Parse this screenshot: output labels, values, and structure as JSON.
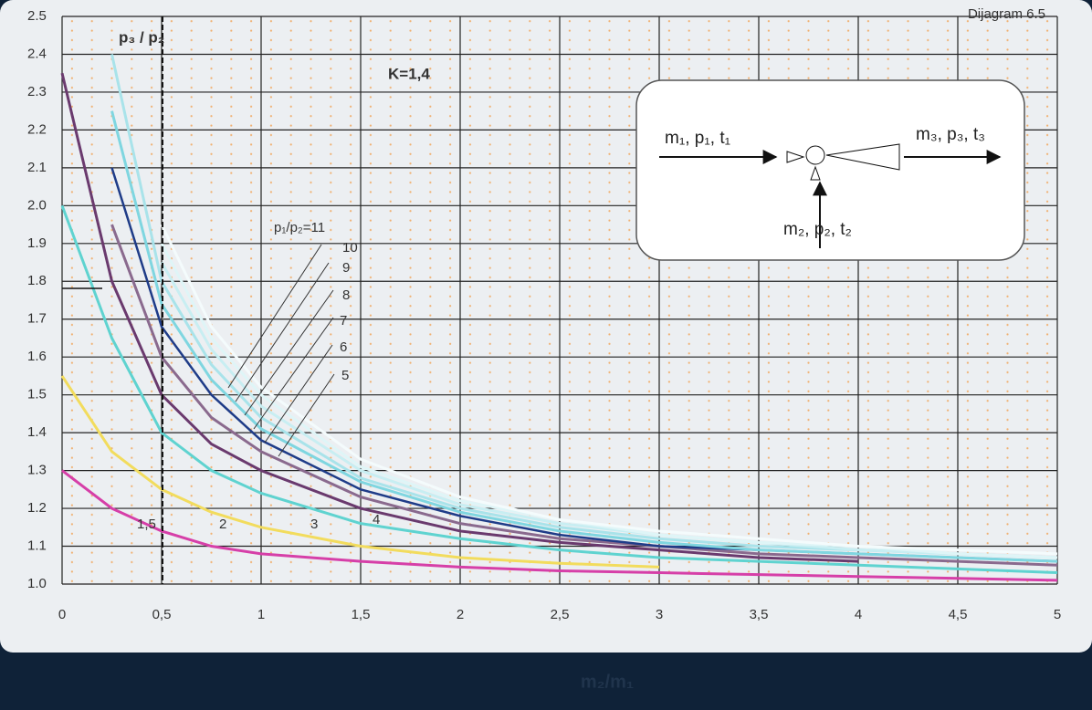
{
  "chart_data": {
    "type": "line",
    "title": "Dijagram 6.5",
    "y_label": "p₃ / p₂",
    "x_label": "m₂/m₁",
    "annotation": "K=1,4",
    "x": [
      0,
      0.25,
      0.5,
      0.75,
      1,
      1.5,
      2,
      2.5,
      3,
      3.5,
      4,
      4.5,
      5
    ],
    "series": [
      {
        "name": "1,5",
        "color": "#d63fa8",
        "values": [
          1.3,
          1.2,
          1.14,
          1.1,
          1.08,
          1.06,
          1.045,
          1.035,
          1.03,
          1.025,
          1.02,
          1.015,
          1.01
        ]
      },
      {
        "name": "2",
        "color": "#f2dc5d",
        "values": [
          1.55,
          1.35,
          1.25,
          1.19,
          1.15,
          1.1,
          1.07,
          1.055,
          1.045,
          null,
          null,
          null,
          null
        ]
      },
      {
        "name": "3",
        "color": "#5fd3d0",
        "values": [
          2.0,
          1.65,
          1.4,
          1.3,
          1.24,
          1.16,
          1.12,
          1.09,
          1.07,
          1.06,
          1.05,
          1.04,
          1.03
        ]
      },
      {
        "name": "4",
        "color": "#6a3a6e",
        "values": [
          2.35,
          1.8,
          1.5,
          1.37,
          1.3,
          1.2,
          1.14,
          1.11,
          1.09,
          1.07,
          1.06,
          null,
          null
        ]
      },
      {
        "name": "5",
        "color": "#8a6a8e",
        "values": [
          null,
          1.95,
          1.6,
          1.44,
          1.35,
          1.23,
          1.16,
          1.12,
          1.1,
          1.08,
          1.07,
          1.06,
          1.05
        ]
      },
      {
        "name": "6",
        "color": "#1f3c88",
        "values": [
          null,
          2.1,
          1.68,
          1.5,
          1.38,
          1.25,
          1.18,
          1.13,
          1.1,
          1.09,
          1.08,
          1.07,
          1.06
        ]
      },
      {
        "name": "7",
        "color": "#7fd6e0",
        "values": [
          null,
          2.25,
          1.74,
          1.54,
          1.41,
          1.27,
          1.19,
          1.14,
          1.11,
          1.09,
          1.08,
          1.07,
          1.06
        ]
      },
      {
        "name": "8",
        "color": "#a9e3ea",
        "values": [
          null,
          2.4,
          1.8,
          1.58,
          1.44,
          1.28,
          1.2,
          1.15,
          1.12,
          1.1,
          1.09,
          1.08,
          1.07
        ]
      },
      {
        "name": "9",
        "color": "#c8eef2",
        "values": [
          null,
          null,
          1.85,
          1.62,
          1.47,
          1.3,
          1.21,
          1.16,
          1.13,
          1.11,
          1.09,
          1.08,
          1.07
        ]
      },
      {
        "name": "10",
        "color": "#dff5f7",
        "values": [
          null,
          null,
          1.9,
          1.65,
          1.5,
          1.31,
          1.22,
          1.17,
          1.13,
          1.11,
          1.1,
          1.08,
          1.07
        ]
      },
      {
        "name": "p₁/p₂=11",
        "color": "#f4fbfc",
        "values": [
          null,
          null,
          1.95,
          1.68,
          1.52,
          1.33,
          1.23,
          1.17,
          1.14,
          1.12,
          1.1,
          1.09,
          1.08
        ]
      }
    ],
    "xlim": [
      0,
      5
    ],
    "xticks": [
      0,
      {
        "value": 0.5,
        "label": "0,5"
      },
      1,
      {
        "value": 1.5,
        "label": "1,5"
      },
      2,
      {
        "value": 2.5,
        "label": "2,5"
      },
      3,
      {
        "value": 3.5,
        "label": "3,5"
      },
      4,
      {
        "value": 4.5,
        "label": "4,5"
      },
      5
    ],
    "ylim": [
      1,
      2.5
    ],
    "yticks": [
      {
        "value": 1,
        "label": "1.0"
      },
      1.1,
      1.2,
      1.3,
      1.4,
      1.5,
      1.6,
      1.7,
      1.8,
      1.9,
      {
        "value": 2,
        "label": "2.0"
      },
      2.1,
      2.2,
      2.3,
      2.4,
      2.5
    ],
    "grid": true,
    "inset": {
      "inlet1": "m₁, p₁, t₁",
      "outlet": "m₃, p₃, t₃",
      "inlet2": "m₂,  p₂, t₂"
    }
  }
}
